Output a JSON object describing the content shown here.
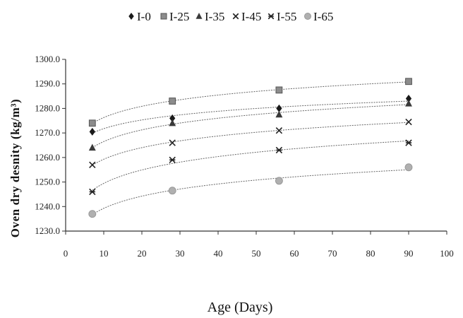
{
  "chart_data": {
    "type": "scatter",
    "title": "",
    "xlabel": "Age (Days)",
    "ylabel": "Oven dry desnity (kg/m³)",
    "xlim": [
      0,
      100
    ],
    "ylim": [
      1230,
      1300
    ],
    "x_ticks": [
      "0",
      "10",
      "20",
      "30",
      "40",
      "50",
      "60",
      "70",
      "80",
      "90",
      "100"
    ],
    "y_ticks": [
      "1230.0",
      "1240.0",
      "1250.0",
      "1260.0",
      "1270.0",
      "1280.0",
      "1290.0",
      "1300.0"
    ],
    "grid": false,
    "legend_position": "top",
    "trendline": "logarithmic",
    "x": [
      7,
      28,
      56,
      90
    ],
    "series": [
      {
        "name": "I-0",
        "marker": "diamond",
        "color": "#1a1a1a",
        "values": [
          1270.5,
          1276.0,
          1280.0,
          1284.0
        ]
      },
      {
        "name": "I-25",
        "marker": "square",
        "color": "#8c8c8c",
        "values": [
          1274.0,
          1283.0,
          1287.5,
          1291.0
        ]
      },
      {
        "name": "I-35",
        "marker": "triangle",
        "color": "#3a3a3a",
        "values": [
          1264.0,
          1274.0,
          1277.5,
          1282.0
        ]
      },
      {
        "name": "I-45",
        "marker": "x",
        "color": "#222222",
        "values": [
          1257.0,
          1266.0,
          1271.0,
          1274.5
        ]
      },
      {
        "name": "I-55",
        "marker": "asterisk",
        "color": "#222222",
        "values": [
          1246.0,
          1259.0,
          1263.0,
          1266.0
        ]
      },
      {
        "name": "I-65",
        "marker": "circle",
        "color": "#b0b0b0",
        "values": [
          1237.0,
          1246.5,
          1250.5,
          1256.0
        ]
      }
    ]
  }
}
